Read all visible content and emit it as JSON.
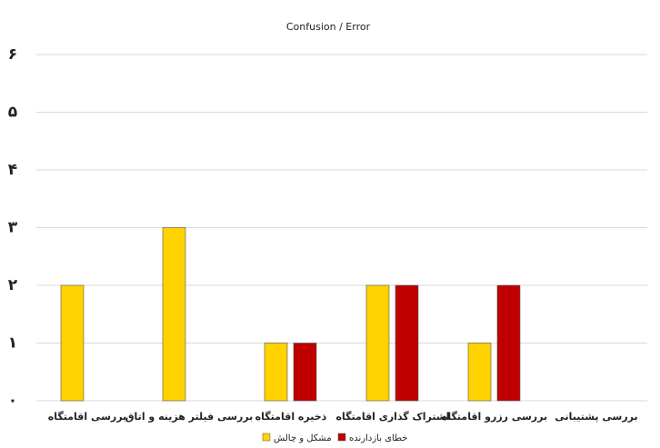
{
  "chart_data": {
    "type": "bar",
    "title": "Confusion / Error",
    "categories": [
      "بررسی اقامتگاه",
      "بررسی فیلتر هزینه و اتاق",
      "ذخیره اقامتگاه",
      "اشتراک گذاری اقامتگاه",
      "بررسی رزرو اقامتگاه",
      "بررسی پشتیبانی"
    ],
    "series": [
      {
        "name": "مشکل و چالش",
        "color": "#ffd200",
        "values": [
          2,
          3,
          1,
          2,
          1,
          0
        ]
      },
      {
        "name": "خطای بازدارنده",
        "color": "#c00000",
        "values": [
          0,
          0,
          1,
          2,
          2,
          0
        ]
      }
    ],
    "ylim": [
      0,
      6
    ],
    "yticks": [
      {
        "value": 0,
        "label": "۰"
      },
      {
        "value": 1,
        "label": "۱"
      },
      {
        "value": 2,
        "label": "۲"
      },
      {
        "value": 3,
        "label": "۳"
      },
      {
        "value": 4,
        "label": "۴"
      },
      {
        "value": 5,
        "label": "۵"
      },
      {
        "value": 6,
        "label": "۶"
      }
    ],
    "grid": true
  }
}
